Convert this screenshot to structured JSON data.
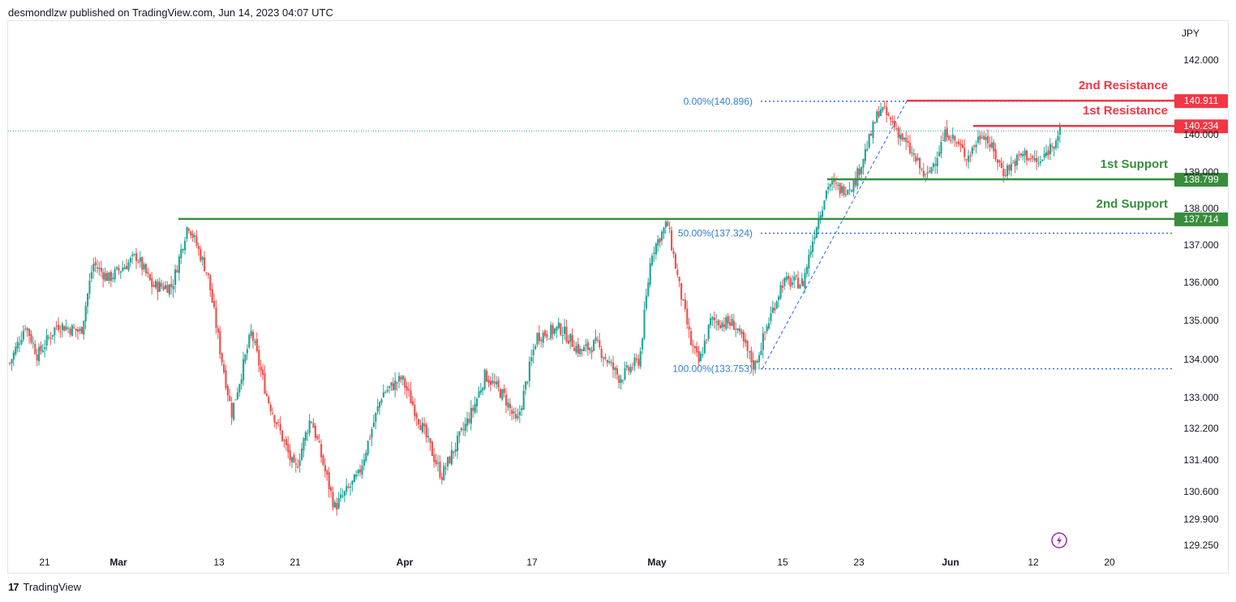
{
  "header": {
    "published_text": "desmondlzw published on TradingView.com, Jun 14, 2023 04:07 UTC"
  },
  "footer": {
    "brand": "TradingView",
    "logo_glyph": "17"
  },
  "colors": {
    "up": "#26a69a",
    "down": "#ef5350",
    "resistance": "#f23645",
    "support": "#388e3c",
    "fib": "#2962ff",
    "fib_text": "#2f7fd3",
    "axis_text": "#131722",
    "last_price_line": "#26a69a",
    "alert": "#9c27b0"
  },
  "chart_data": {
    "type": "candlestick",
    "symbol_currency": "JPY",
    "ylim": [
      129.0,
      142.8
    ],
    "y_ticks": [
      "142.000",
      "140.000",
      "139.000",
      "138.000",
      "137.000",
      "136.000",
      "135.000",
      "134.000",
      "133.000",
      "132.200",
      "131.400",
      "130.600",
      "129.900",
      "129.250"
    ],
    "x_ticks": [
      "21",
      "Mar",
      "13",
      "21",
      "Apr",
      "17",
      "May",
      "15",
      "23",
      "Jun",
      "12",
      "20"
    ],
    "x_tick_bold": [
      "Mar",
      "Apr",
      "May",
      "Jun"
    ],
    "last_price": 140.1,
    "levels": [
      {
        "name": "2nd Resistance",
        "value": 140.911,
        "label": "140.911",
        "kind": "resistance"
      },
      {
        "name": "1st Resistance",
        "value": 140.234,
        "label": "140.234",
        "kind": "resistance"
      },
      {
        "name": "1st Support",
        "value": 138.799,
        "label": "138.799",
        "kind": "support"
      },
      {
        "name": "2nd Support",
        "value": 137.714,
        "label": "137.714",
        "kind": "support"
      }
    ],
    "fibonacci": [
      {
        "label": "0.00%(140.896)",
        "value": 140.896
      },
      {
        "label": "50.00%(137.324)",
        "value": 137.324
      },
      {
        "label": "100.00%(133.753)",
        "value": 133.753
      }
    ],
    "close_path": [
      {
        "t": 0.0,
        "v": 133.9
      },
      {
        "t": 0.02,
        "v": 134.9
      },
      {
        "t": 0.035,
        "v": 134.1
      },
      {
        "t": 0.06,
        "v": 134.9
      },
      {
        "t": 0.09,
        "v": 134.7
      },
      {
        "t": 0.105,
        "v": 136.5
      },
      {
        "t": 0.125,
        "v": 136.1
      },
      {
        "t": 0.16,
        "v": 136.7
      },
      {
        "t": 0.18,
        "v": 135.9
      },
      {
        "t": 0.205,
        "v": 135.9
      },
      {
        "t": 0.225,
        "v": 137.6
      },
      {
        "t": 0.25,
        "v": 136.2
      },
      {
        "t": 0.265,
        "v": 134.3
      },
      {
        "t": 0.28,
        "v": 132.6
      },
      {
        "t": 0.305,
        "v": 134.7
      },
      {
        "t": 0.325,
        "v": 133.0
      },
      {
        "t": 0.36,
        "v": 131.1
      },
      {
        "t": 0.38,
        "v": 132.5
      },
      {
        "t": 0.41,
        "v": 130.2
      },
      {
        "t": 0.44,
        "v": 131.0
      },
      {
        "t": 0.47,
        "v": 133.1
      },
      {
        "t": 0.495,
        "v": 133.5
      },
      {
        "t": 0.515,
        "v": 132.5
      },
      {
        "t": 0.545,
        "v": 131.0
      },
      {
        "t": 0.585,
        "v": 132.7
      },
      {
        "t": 0.6,
        "v": 133.6
      },
      {
        "t": 0.625,
        "v": 133.0
      },
      {
        "t": 0.64,
        "v": 132.3
      },
      {
        "t": 0.665,
        "v": 134.6
      },
      {
        "t": 0.695,
        "v": 134.8
      },
      {
        "t": 0.72,
        "v": 134.2
      },
      {
        "t": 0.74,
        "v": 134.4
      },
      {
        "t": 0.77,
        "v": 133.5
      },
      {
        "t": 0.795,
        "v": 134.0
      },
      {
        "t": 0.81,
        "v": 136.8
      },
      {
        "t": 0.83,
        "v": 137.6
      },
      {
        "t": 0.845,
        "v": 135.9
      },
      {
        "t": 0.86,
        "v": 134.4
      },
      {
        "t": 0.87,
        "v": 133.9
      },
      {
        "t": 0.885,
        "v": 135.0
      },
      {
        "t": 0.915,
        "v": 134.9
      },
      {
        "t": 0.94,
        "v": 133.8
      },
      {
        "t": 0.955,
        "v": 134.8
      },
      {
        "t": 0.975,
        "v": 136.0
      },
      {
        "t": 1.0,
        "v": 136.0
      }
    ],
    "close_path_2": [
      {
        "t": 0.0,
        "v": 136.0
      },
      {
        "t": 0.05,
        "v": 137.5
      },
      {
        "t": 0.1,
        "v": 138.7
      },
      {
        "t": 0.15,
        "v": 138.5
      },
      {
        "t": 0.2,
        "v": 138.7
      },
      {
        "t": 0.26,
        "v": 139.9
      },
      {
        "t": 0.3,
        "v": 140.75
      },
      {
        "t": 0.36,
        "v": 140.2
      },
      {
        "t": 0.44,
        "v": 139.3
      },
      {
        "t": 0.48,
        "v": 138.8
      },
      {
        "t": 0.56,
        "v": 140.1
      },
      {
        "t": 0.64,
        "v": 139.4
      },
      {
        "t": 0.7,
        "v": 140.1
      },
      {
        "t": 0.78,
        "v": 139.0
      },
      {
        "t": 0.86,
        "v": 139.5
      },
      {
        "t": 0.92,
        "v": 139.2
      },
      {
        "t": 1.0,
        "v": 140.1
      }
    ]
  }
}
